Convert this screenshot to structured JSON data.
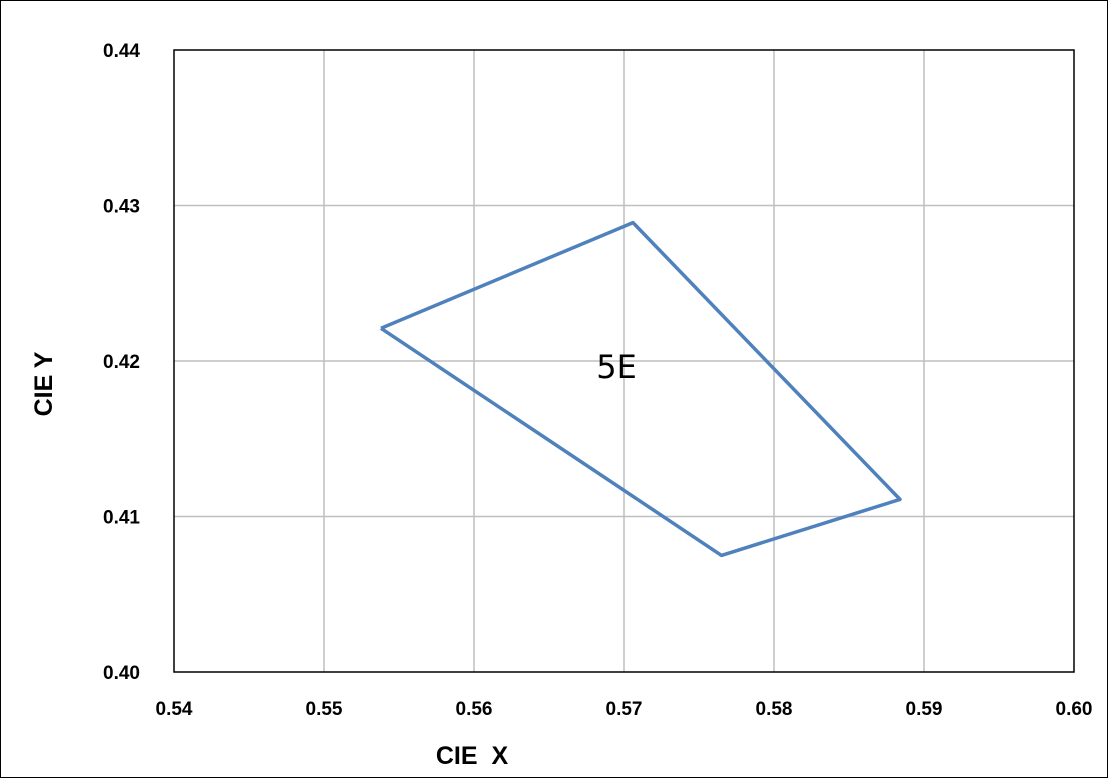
{
  "chart_data": {
    "type": "line",
    "title": "",
    "xlabel": "CIE  X",
    "ylabel": "CIE Y",
    "xlim": [
      0.54,
      0.6
    ],
    "ylim": [
      0.4,
      0.44
    ],
    "x_ticks": [
      "0.54",
      "0.55",
      "0.56",
      "0.57",
      "0.58",
      "0.59",
      "0.60"
    ],
    "y_ticks": [
      "0.40",
      "0.41",
      "0.42",
      "0.43",
      "0.44"
    ],
    "grid": true,
    "series": [
      {
        "points": [
          {
            "x": 0.5538,
            "y": 0.4221
          },
          {
            "x": 0.5706,
            "y": 0.4289
          },
          {
            "x": 0.5884,
            "y": 0.4111
          },
          {
            "x": 0.5765,
            "y": 0.4075
          },
          {
            "x": 0.5538,
            "y": 0.4221
          }
        ],
        "color": "#4F81BD"
      }
    ],
    "annotations": [
      {
        "text": "5E",
        "x": 0.5695,
        "y": 0.4195
      }
    ]
  }
}
